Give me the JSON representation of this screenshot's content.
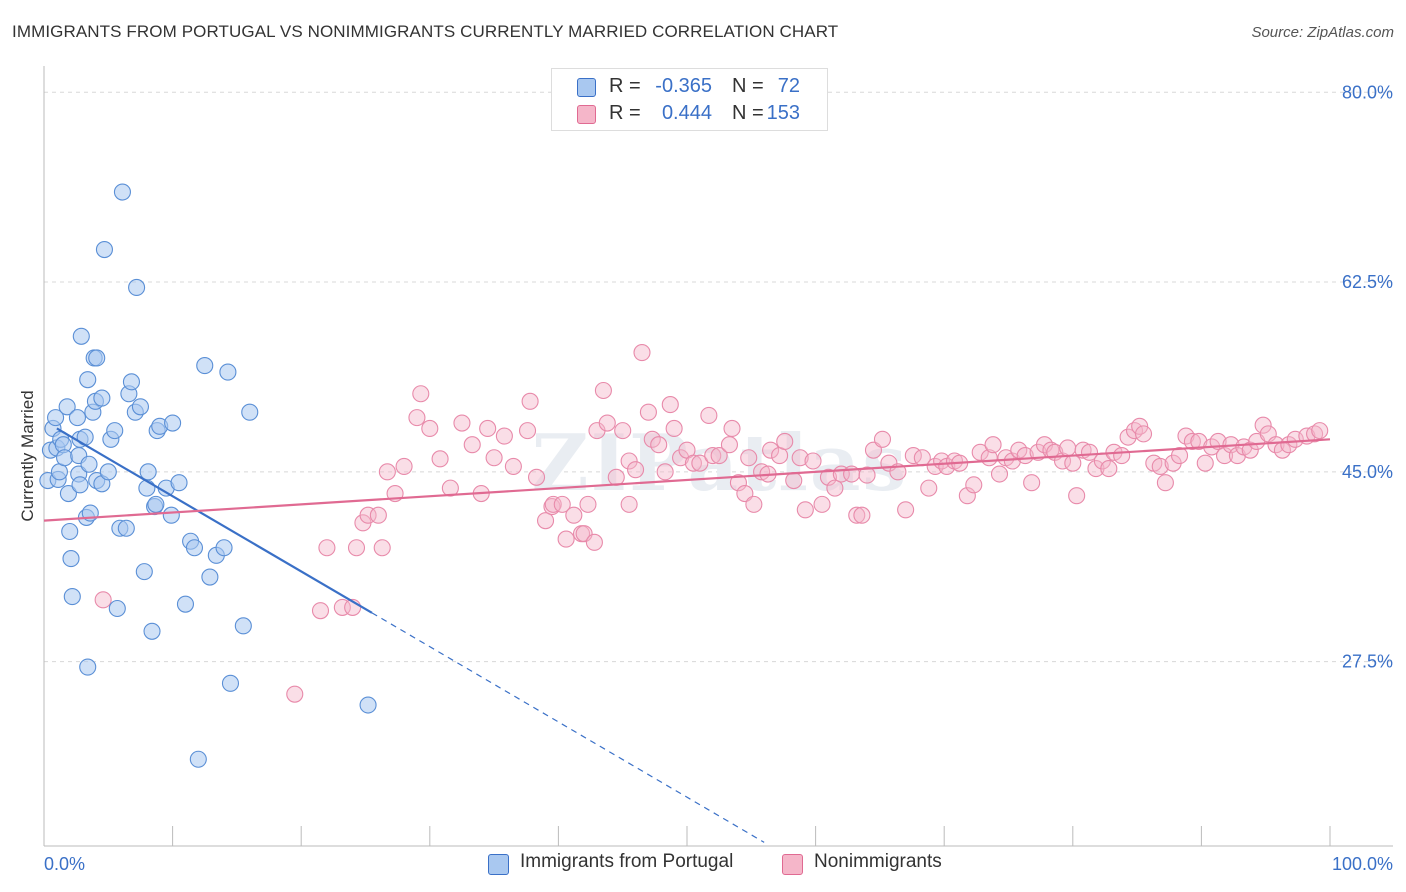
{
  "header": {
    "title": "IMMIGRANTS FROM PORTUGAL VS NONIMMIGRANTS CURRENTLY MARRIED CORRELATION CHART",
    "source": "Source: ZipAtlas.com"
  },
  "stats_legend": {
    "r_label": "R =",
    "n_label": "N =",
    "rows": [
      {
        "r": "-0.365",
        "n": "72",
        "color": "#a9c8f0"
      },
      {
        "r": "0.444",
        "n": "153",
        "color": "#f5b6c9"
      }
    ]
  },
  "bottom_legend": {
    "items": [
      {
        "label": "Immigrants from Portugal",
        "color": "#a9c8f0"
      },
      {
        "label": "Nonimmigrants",
        "color": "#f5b6c9"
      }
    ]
  },
  "chart_data": {
    "type": "scatter",
    "title": "IMMIGRANTS FROM PORTUGAL VS NONIMMIGRANTS CURRENTLY MARRIED CORRELATION CHART",
    "xlabel": "",
    "ylabel": "Currently Married",
    "x_tick_labels": [
      "0.0%",
      "100.0%"
    ],
    "y_tick_labels": [
      "27.5%",
      "45.0%",
      "62.5%",
      "80.0%"
    ],
    "y_ticks": [
      27.5,
      45.0,
      62.5,
      80.0
    ],
    "xlim": [
      0,
      100
    ],
    "ylim": [
      10.5,
      81.5
    ],
    "grid": true,
    "legend_position": "bottom",
    "watermark": "ZIPatlas",
    "colors": {
      "blue": "#3a70c7",
      "pink": "#e06a92",
      "blue_fill": "#a9c8f0",
      "pink_fill": "#f5b6c9",
      "tick_label": "#3a70c7"
    },
    "series": [
      {
        "name": "Immigrants from Portugal",
        "r": -0.365,
        "n": 72,
        "trend": {
          "x0": 1.0,
          "y0": 49.0,
          "x1": 25.5,
          "y1": 32.0,
          "dashed_to_x": 56.0
        },
        "points": [
          [
            0.3,
            44.2
          ],
          [
            0.5,
            47.0
          ],
          [
            0.7,
            49.0
          ],
          [
            0.9,
            50.0
          ],
          [
            1.0,
            47.2
          ],
          [
            1.1,
            44.3
          ],
          [
            1.2,
            45.0
          ],
          [
            1.3,
            48.0
          ],
          [
            1.5,
            47.5
          ],
          [
            1.6,
            46.3
          ],
          [
            1.8,
            51.0
          ],
          [
            1.9,
            43.0
          ],
          [
            2.0,
            39.5
          ],
          [
            2.1,
            37.0
          ],
          [
            2.2,
            33.5
          ],
          [
            2.6,
            50.0
          ],
          [
            2.7,
            46.5
          ],
          [
            2.7,
            44.8
          ],
          [
            2.8,
            43.8
          ],
          [
            2.8,
            48.0
          ],
          [
            2.9,
            57.5
          ],
          [
            3.2,
            48.2
          ],
          [
            3.3,
            40.8
          ],
          [
            3.4,
            53.5
          ],
          [
            3.4,
            27.0
          ],
          [
            3.5,
            45.7
          ],
          [
            3.6,
            41.2
          ],
          [
            3.8,
            50.5
          ],
          [
            3.9,
            55.5
          ],
          [
            4.0,
            51.5
          ],
          [
            4.1,
            55.5
          ],
          [
            4.1,
            44.2
          ],
          [
            4.5,
            43.9
          ],
          [
            4.5,
            51.8
          ],
          [
            4.7,
            65.5
          ],
          [
            5.0,
            45.0
          ],
          [
            5.2,
            48.0
          ],
          [
            5.5,
            48.8
          ],
          [
            5.7,
            32.4
          ],
          [
            5.9,
            39.8
          ],
          [
            6.1,
            70.8
          ],
          [
            6.4,
            39.8
          ],
          [
            6.6,
            52.2
          ],
          [
            6.8,
            53.3
          ],
          [
            7.1,
            50.5
          ],
          [
            7.2,
            62.0
          ],
          [
            7.5,
            51.0
          ],
          [
            7.8,
            35.8
          ],
          [
            8.1,
            45.0
          ],
          [
            8.0,
            43.5
          ],
          [
            8.4,
            30.3
          ],
          [
            8.6,
            41.8
          ],
          [
            8.8,
            48.8
          ],
          [
            9.0,
            49.2
          ],
          [
            9.5,
            43.5
          ],
          [
            9.9,
            41.0
          ],
          [
            10.0,
            49.5
          ],
          [
            11.0,
            32.8
          ],
          [
            11.4,
            38.6
          ],
          [
            11.7,
            38.0
          ],
          [
            12.0,
            18.5
          ],
          [
            12.5,
            54.8
          ],
          [
            12.9,
            35.3
          ],
          [
            13.4,
            37.3
          ],
          [
            14.0,
            38.0
          ],
          [
            14.3,
            54.2
          ],
          [
            14.5,
            25.5
          ],
          [
            15.5,
            30.8
          ],
          [
            16.0,
            50.5
          ],
          [
            25.2,
            23.5
          ],
          [
            8.7,
            42.0
          ],
          [
            10.5,
            44.0
          ]
        ]
      },
      {
        "name": "Nonimmigrants",
        "r": 0.444,
        "n": 153,
        "trend": {
          "x0": 0.0,
          "y0": 40.5,
          "x1": 100.0,
          "y1": 48.0
        },
        "points": [
          [
            4.6,
            33.2
          ],
          [
            19.5,
            24.5
          ],
          [
            21.5,
            32.2
          ],
          [
            22.0,
            38.0
          ],
          [
            23.2,
            32.5
          ],
          [
            24.0,
            32.5
          ],
          [
            24.3,
            38.0
          ],
          [
            24.8,
            40.3
          ],
          [
            25.2,
            41.0
          ],
          [
            26.0,
            41.0
          ],
          [
            26.3,
            38.0
          ],
          [
            26.7,
            45.0
          ],
          [
            27.3,
            43.0
          ],
          [
            28.0,
            45.5
          ],
          [
            29.0,
            50.0
          ],
          [
            29.3,
            52.2
          ],
          [
            30.0,
            49.0
          ],
          [
            30.8,
            46.2
          ],
          [
            31.6,
            43.5
          ],
          [
            32.5,
            49.5
          ],
          [
            33.3,
            47.5
          ],
          [
            34.0,
            43.0
          ],
          [
            34.5,
            49.0
          ],
          [
            35.0,
            46.3
          ],
          [
            35.8,
            48.3
          ],
          [
            36.5,
            45.5
          ],
          [
            37.6,
            48.8
          ],
          [
            37.8,
            51.5
          ],
          [
            38.3,
            44.5
          ],
          [
            39.0,
            40.5
          ],
          [
            39.5,
            41.8
          ],
          [
            39.6,
            42.0
          ],
          [
            40.3,
            42.0
          ],
          [
            40.6,
            38.8
          ],
          [
            41.2,
            41.0
          ],
          [
            41.8,
            39.3
          ],
          [
            42.0,
            39.3
          ],
          [
            42.3,
            42.0
          ],
          [
            42.8,
            38.5
          ],
          [
            43.0,
            48.8
          ],
          [
            43.5,
            52.5
          ],
          [
            43.8,
            49.5
          ],
          [
            44.5,
            44.5
          ],
          [
            45.0,
            48.8
          ],
          [
            45.5,
            42.0
          ],
          [
            45.5,
            46.0
          ],
          [
            46.0,
            45.2
          ],
          [
            46.5,
            56.0
          ],
          [
            47.0,
            50.5
          ],
          [
            47.3,
            48.0
          ],
          [
            47.8,
            47.5
          ],
          [
            48.3,
            45.0
          ],
          [
            48.7,
            51.2
          ],
          [
            49.0,
            49.0
          ],
          [
            49.5,
            46.3
          ],
          [
            50.0,
            47.0
          ],
          [
            50.5,
            45.8
          ],
          [
            51.0,
            45.8
          ],
          [
            51.7,
            50.2
          ],
          [
            52.0,
            46.5
          ],
          [
            52.5,
            46.5
          ],
          [
            53.3,
            47.5
          ],
          [
            53.5,
            49.0
          ],
          [
            54.0,
            44.0
          ],
          [
            54.5,
            43.0
          ],
          [
            54.8,
            46.3
          ],
          [
            55.2,
            42.0
          ],
          [
            55.8,
            45.0
          ],
          [
            56.3,
            44.8
          ],
          [
            56.5,
            47.0
          ],
          [
            57.2,
            46.5
          ],
          [
            57.6,
            47.8
          ],
          [
            58.3,
            44.2
          ],
          [
            58.8,
            46.3
          ],
          [
            59.2,
            41.5
          ],
          [
            59.8,
            46.0
          ],
          [
            60.5,
            42.0
          ],
          [
            61.0,
            44.5
          ],
          [
            61.5,
            43.5
          ],
          [
            62.0,
            44.8
          ],
          [
            62.8,
            44.8
          ],
          [
            63.2,
            41.0
          ],
          [
            63.6,
            41.0
          ],
          [
            64.0,
            44.7
          ],
          [
            64.5,
            47.0
          ],
          [
            65.2,
            48.0
          ],
          [
            65.7,
            45.8
          ],
          [
            66.4,
            45.0
          ],
          [
            67.0,
            41.5
          ],
          [
            67.6,
            46.5
          ],
          [
            68.3,
            46.3
          ],
          [
            68.8,
            43.5
          ],
          [
            69.3,
            45.5
          ],
          [
            69.8,
            46.0
          ],
          [
            70.2,
            45.5
          ],
          [
            70.8,
            46.0
          ],
          [
            71.2,
            45.8
          ],
          [
            71.8,
            42.8
          ],
          [
            72.3,
            43.8
          ],
          [
            72.8,
            46.8
          ],
          [
            73.5,
            46.3
          ],
          [
            73.8,
            47.5
          ],
          [
            74.3,
            44.8
          ],
          [
            74.8,
            46.3
          ],
          [
            75.3,
            46.0
          ],
          [
            75.8,
            47.0
          ],
          [
            76.3,
            46.5
          ],
          [
            76.8,
            44.0
          ],
          [
            77.3,
            46.8
          ],
          [
            77.8,
            47.5
          ],
          [
            78.3,
            47.0
          ],
          [
            78.6,
            46.8
          ],
          [
            79.2,
            46.0
          ],
          [
            79.6,
            47.2
          ],
          [
            80.0,
            45.8
          ],
          [
            80.3,
            42.8
          ],
          [
            80.8,
            47.0
          ],
          [
            81.3,
            46.8
          ],
          [
            81.8,
            45.3
          ],
          [
            82.3,
            46.0
          ],
          [
            82.8,
            45.3
          ],
          [
            83.2,
            46.8
          ],
          [
            83.8,
            46.5
          ],
          [
            84.3,
            48.2
          ],
          [
            84.8,
            48.8
          ],
          [
            85.2,
            49.2
          ],
          [
            85.5,
            48.5
          ],
          [
            86.3,
            45.8
          ],
          [
            86.8,
            45.5
          ],
          [
            87.2,
            44.0
          ],
          [
            87.8,
            45.8
          ],
          [
            88.3,
            46.5
          ],
          [
            88.8,
            48.3
          ],
          [
            89.3,
            47.8
          ],
          [
            89.8,
            47.8
          ],
          [
            90.3,
            45.8
          ],
          [
            90.8,
            47.3
          ],
          [
            91.3,
            47.8
          ],
          [
            91.8,
            46.5
          ],
          [
            92.3,
            47.5
          ],
          [
            92.8,
            46.5
          ],
          [
            93.3,
            47.3
          ],
          [
            93.8,
            47.0
          ],
          [
            94.3,
            47.8
          ],
          [
            94.8,
            49.3
          ],
          [
            95.2,
            48.5
          ],
          [
            95.8,
            47.5
          ],
          [
            96.3,
            47.0
          ],
          [
            96.8,
            47.5
          ],
          [
            97.3,
            48.0
          ],
          [
            98.2,
            48.3
          ],
          [
            98.8,
            48.5
          ],
          [
            99.2,
            48.8
          ]
        ]
      }
    ]
  }
}
